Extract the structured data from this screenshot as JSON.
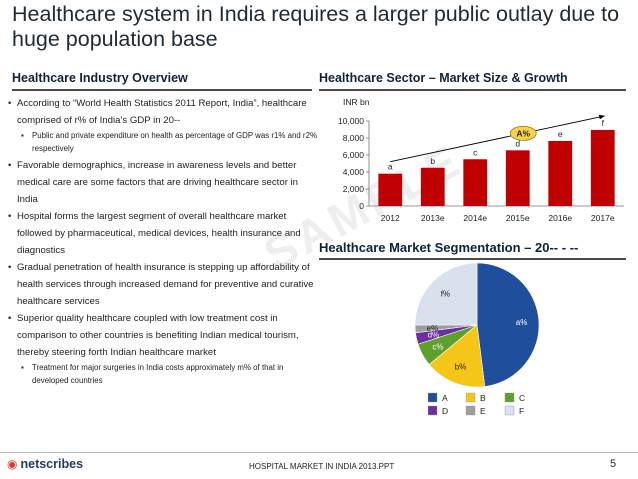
{
  "title": "Healthcare system in India requires a larger public outlay due to huge population base",
  "left_panel": {
    "heading": "Healthcare Industry Overview",
    "bullets": [
      {
        "text": "According to “World Health Statistics 2011 Report, India”, healthcare comprised of r% of India’s GDP in 20--",
        "sub": [
          "Public and private expenditure on health as percentage of GDP was r1% and r2% respectively"
        ]
      },
      {
        "text": "Favorable demographics, increase in awareness levels and better medical care are some factors that are driving healthcare sector in India",
        "sub": []
      },
      {
        "text": "Hospital forms the largest segment of overall healthcare market followed by pharmaceutical, medical devices, health insurance and diagnostics",
        "sub": []
      },
      {
        "text": "Gradual penetration of health insurance is stepping up affordability of health services through increased demand for preventive and curative healthcare services",
        "sub": []
      },
      {
        "text": "Superior quality healthcare coupled with low treatment cost in comparison to other countries is benefiting Indian medical tourism, thereby steering forth Indian healthcare market",
        "sub": [
          "Treatment for major surgeries in India costs approximately m% of that in developed countries"
        ]
      }
    ]
  },
  "watermark": "SAMPLE",
  "chart_data": [
    {
      "type": "bar",
      "title": "Healthcare Sector – Market Size & Growth",
      "ylabel": "INR bn",
      "categories": [
        "2012",
        "2013e",
        "2014e",
        "2015e",
        "2016e",
        "2017e"
      ],
      "values": [
        3800,
        4500,
        5500,
        6550,
        7650,
        8950
      ],
      "data_labels": [
        "a",
        "b",
        "c",
        "d",
        "e",
        "f"
      ],
      "ylim": [
        0,
        10000
      ],
      "yticks": [
        0,
        2000,
        4000,
        6000,
        8000,
        10000
      ],
      "ytick_labels": [
        "0",
        "2,000",
        "4,000",
        "6,000",
        "8,000",
        "10,000"
      ],
      "cagr_label": "A%",
      "bar_color": "#c00000"
    },
    {
      "type": "pie",
      "title": "Healthcare Market Segmentation – 20-- - --",
      "slices": [
        {
          "key": "A",
          "label": "a%",
          "value": 48,
          "color": "#1f4e9c"
        },
        {
          "key": "B",
          "label": "b%",
          "value": 16,
          "color": "#f5c518"
        },
        {
          "key": "C",
          "label": "c%",
          "value": 6,
          "color": "#5da02e"
        },
        {
          "key": "D",
          "label": "d%",
          "value": 3,
          "color": "#6b2fa0"
        },
        {
          "key": "E",
          "label": "e%",
          "value": 2,
          "color": "#9e9e9e"
        },
        {
          "key": "F",
          "label": "f%",
          "value": 25,
          "color": "#d9e1ee"
        }
      ],
      "legend": [
        "A",
        "B",
        "C",
        "D",
        "E",
        "F"
      ]
    }
  ],
  "footer": {
    "logo_text": "netscribes",
    "center_text": "HOSPITAL MARKET IN INDIA 2013.PPT",
    "page_number": "5"
  }
}
